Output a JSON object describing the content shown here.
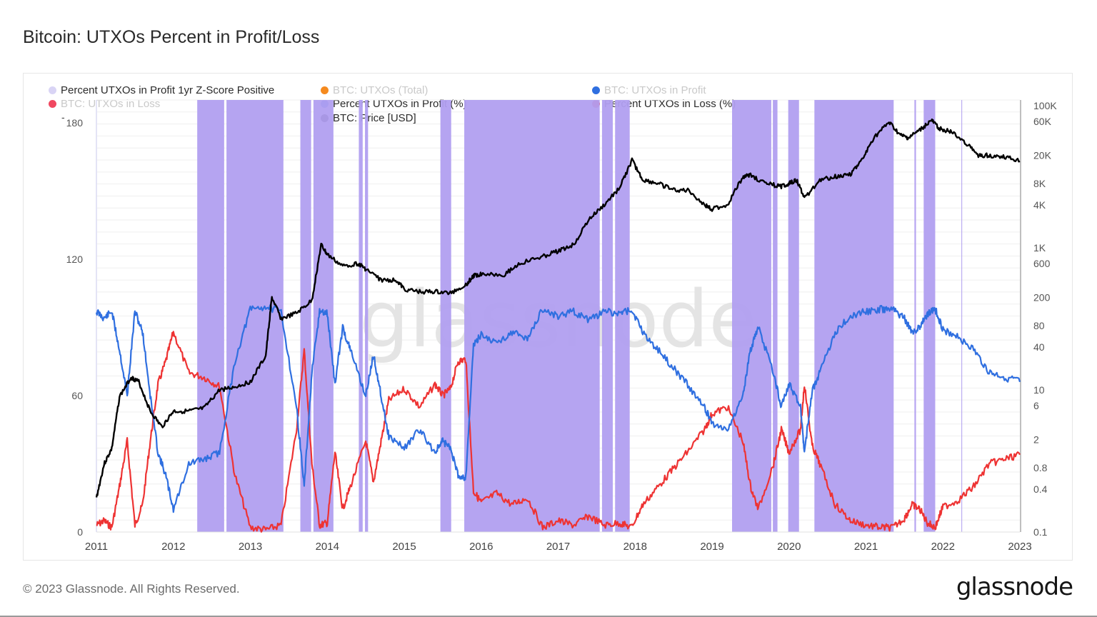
{
  "title": "Bitcoin: UTXOs Percent in Profit/Loss",
  "footer": {
    "copyright": "© 2023 Glassnode. All Rights Reserved.",
    "logo": "glassnode"
  },
  "watermark": "glassnode",
  "left_axis_dash": "-",
  "legend": [
    {
      "label": "Percent UTXOs in Profit 1yr Z-Score Positive",
      "color": "#d9d4f5",
      "state": "active"
    },
    {
      "label": "BTC: UTXOs (Total)",
      "color": "#f58a1f",
      "state": "muted"
    },
    {
      "label": "BTC: UTXOs in Profit",
      "color": "#2f6fe0",
      "state": "muted"
    },
    {
      "label": "BTC: UTXOs in Loss",
      "color": "#f04860",
      "state": "muted"
    },
    {
      "label": "Percent UTXOs in Profit (%)",
      "color": "#2f6fe0",
      "state": "active"
    },
    {
      "label": "Percent UTXOs in Loss (%)",
      "color": "#ee3333",
      "state": "active"
    },
    {
      "label": "BTC: Price [USD]",
      "color": "#000000",
      "state": "active"
    }
  ],
  "chart_data": {
    "type": "line",
    "title": "Bitcoin: UTXOs Percent in Profit/Loss",
    "x_ticks": [
      "2011",
      "2012",
      "2013",
      "2014",
      "2015",
      "2016",
      "2017",
      "2018",
      "2019",
      "2020",
      "2021",
      "2022",
      "2023"
    ],
    "xlim": [
      2011.0,
      2023.0
    ],
    "left_axis": {
      "ticks": [
        "0",
        "60",
        "120",
        "180"
      ],
      "ylim": [
        0,
        190
      ]
    },
    "right_axis": {
      "scale": "log",
      "ticks": [
        "100K",
        "60K",
        "20K",
        "8K",
        "4K",
        "1K",
        "600",
        "200",
        "80",
        "40",
        "10",
        "6",
        "2",
        "0.8",
        "0.4",
        "0.1"
      ],
      "ylim": [
        0.1,
        120000
      ]
    },
    "grid": true,
    "legend_position": "top",
    "colors": {
      "profit": "#2f6fe0",
      "loss": "#ee3333",
      "price": "#000000",
      "zscore_band": "#b19ff0"
    },
    "series": [
      {
        "name": "Percent UTXOs in Profit (%)",
        "axis": "left",
        "x": [
          2011.0,
          2011.1,
          2011.2,
          2011.3,
          2011.4,
          2011.5,
          2011.6,
          2011.7,
          2011.8,
          2011.9,
          2012.0,
          2012.2,
          2012.4,
          2012.6,
          2012.8,
          2013.0,
          2013.2,
          2013.4,
          2013.6,
          2013.7,
          2013.8,
          2013.9,
          2014.0,
          2014.1,
          2014.2,
          2014.3,
          2014.5,
          2014.6,
          2014.7,
          2014.8,
          2015.0,
          2015.2,
          2015.4,
          2015.5,
          2015.6,
          2015.7,
          2015.8,
          2015.9,
          2016.0,
          2016.2,
          2016.4,
          2016.6,
          2016.8,
          2017.0,
          2017.2,
          2017.4,
          2017.6,
          2017.8,
          2017.95,
          2018.1,
          2018.3,
          2018.5,
          2018.7,
          2018.9,
          2019.0,
          2019.2,
          2019.4,
          2019.5,
          2019.6,
          2019.8,
          2019.9,
          2020.0,
          2020.15,
          2020.2,
          2020.3,
          2020.4,
          2020.6,
          2020.8,
          2021.0,
          2021.2,
          2021.35,
          2021.5,
          2021.6,
          2021.7,
          2021.8,
          2021.9,
          2022.0,
          2022.2,
          2022.4,
          2022.6,
          2022.8,
          2023.0
        ],
        "y": [
          97,
          94,
          97,
          80,
          60,
          97,
          88,
          60,
          35,
          25,
          10,
          30,
          32,
          35,
          75,
          98,
          99,
          97,
          55,
          20,
          70,
          97,
          96,
          65,
          90,
          80,
          60,
          78,
          60,
          42,
          37,
          45,
          35,
          40,
          37,
          25,
          24,
          82,
          87,
          83,
          88,
          85,
          98,
          95,
          97,
          93,
          97,
          96,
          98,
          88,
          80,
          72,
          64,
          55,
          48,
          45,
          60,
          80,
          90,
          70,
          55,
          65,
          55,
          35,
          62,
          70,
          88,
          95,
          97,
          98,
          98,
          94,
          88,
          90,
          96,
          98,
          89,
          86,
          80,
          70,
          68,
          66
        ],
        "label": "Percent UTXOs in Profit (%)"
      },
      {
        "name": "Percent UTXOs in Loss (%)",
        "axis": "left",
        "x": [
          2011.0,
          2011.1,
          2011.2,
          2011.3,
          2011.4,
          2011.5,
          2011.6,
          2011.7,
          2011.8,
          2011.9,
          2012.0,
          2012.2,
          2012.4,
          2012.6,
          2012.8,
          2013.0,
          2013.2,
          2013.4,
          2013.6,
          2013.7,
          2013.8,
          2013.9,
          2014.0,
          2014.1,
          2014.2,
          2014.3,
          2014.5,
          2014.6,
          2014.7,
          2014.8,
          2015.0,
          2015.2,
          2015.4,
          2015.5,
          2015.6,
          2015.7,
          2015.8,
          2015.9,
          2016.0,
          2016.2,
          2016.4,
          2016.6,
          2016.8,
          2017.0,
          2017.2,
          2017.4,
          2017.6,
          2017.8,
          2017.95,
          2018.1,
          2018.3,
          2018.5,
          2018.7,
          2018.9,
          2019.0,
          2019.2,
          2019.4,
          2019.5,
          2019.6,
          2019.8,
          2019.9,
          2020.0,
          2020.15,
          2020.2,
          2020.3,
          2020.4,
          2020.6,
          2020.8,
          2021.0,
          2021.2,
          2021.35,
          2021.5,
          2021.6,
          2021.7,
          2021.8,
          2021.9,
          2022.0,
          2022.2,
          2022.4,
          2022.6,
          2022.8,
          2023.0
        ],
        "y": [
          3,
          5,
          2,
          20,
          40,
          3,
          12,
          40,
          65,
          75,
          88,
          70,
          68,
          64,
          25,
          2,
          1,
          3,
          45,
          80,
          30,
          3,
          4,
          35,
          10,
          20,
          40,
          22,
          40,
          58,
          63,
          55,
          65,
          60,
          63,
          75,
          76,
          18,
          13,
          17,
          12,
          15,
          2,
          5,
          3,
          7,
          3,
          4,
          2,
          12,
          20,
          28,
          36,
          45,
          52,
          55,
          40,
          20,
          10,
          30,
          45,
          35,
          45,
          65,
          38,
          30,
          12,
          5,
          3,
          2,
          2,
          6,
          12,
          10,
          4,
          2,
          11,
          14,
          20,
          30,
          32,
          34
        ],
        "label": "Percent UTXOs in Loss (%)"
      },
      {
        "name": "BTC: Price [USD]",
        "axis": "right",
        "x": [
          2011.0,
          2011.1,
          2011.2,
          2011.3,
          2011.45,
          2011.55,
          2011.7,
          2011.85,
          2012.0,
          2012.2,
          2012.4,
          2012.6,
          2012.8,
          2013.0,
          2013.2,
          2013.28,
          2013.4,
          2013.6,
          2013.8,
          2013.92,
          2014.0,
          2014.2,
          2014.4,
          2014.5,
          2014.7,
          2014.9,
          2015.0,
          2015.2,
          2015.4,
          2015.6,
          2015.8,
          2015.9,
          2016.0,
          2016.3,
          2016.5,
          2016.8,
          2017.0,
          2017.2,
          2017.4,
          2017.6,
          2017.8,
          2017.96,
          2018.1,
          2018.3,
          2018.5,
          2018.7,
          2018.9,
          2019.0,
          2019.2,
          2019.4,
          2019.5,
          2019.7,
          2019.9,
          2020.0,
          2020.1,
          2020.2,
          2020.4,
          2020.6,
          2020.8,
          2020.95,
          2021.1,
          2021.3,
          2021.45,
          2021.55,
          2021.7,
          2021.85,
          2021.95,
          2022.1,
          2022.3,
          2022.45,
          2022.6,
          2022.8,
          2023.0
        ],
        "y": [
          0.3,
          0.9,
          1.5,
          8,
          15,
          13,
          5,
          3,
          5,
          5,
          5.5,
          10,
          11,
          13,
          30,
          200,
          100,
          120,
          180,
          1100,
          800,
          550,
          600,
          500,
          350,
          350,
          260,
          240,
          240,
          230,
          300,
          400,
          430,
          420,
          600,
          750,
          900,
          1100,
          2500,
          4000,
          7000,
          17000,
          9000,
          8000,
          6500,
          6400,
          4000,
          3500,
          4000,
          10000,
          10500,
          8000,
          7300,
          8000,
          9000,
          5000,
          9000,
          10000,
          11000,
          17000,
          35000,
          58000,
          38000,
          35000,
          45000,
          62000,
          48000,
          43000,
          30000,
          20000,
          20000,
          19000,
          16500
        ]
      }
    ],
    "zscore_positive_bands": [
      [
        2012.31,
        2012.66
      ],
      [
        2012.69,
        2013.43
      ],
      [
        2013.65,
        2013.79
      ],
      [
        2013.82,
        2014.08
      ],
      [
        2014.41,
        2014.46
      ],
      [
        2014.49,
        2014.53
      ],
      [
        2015.47,
        2015.61
      ],
      [
        2015.78,
        2017.54
      ],
      [
        2017.57,
        2017.71
      ],
      [
        2017.74,
        2017.93
      ],
      [
        2019.26,
        2019.77
      ],
      [
        2019.79,
        2019.85
      ],
      [
        2019.99,
        2020.13
      ],
      [
        2020.33,
        2021.36
      ],
      [
        2021.63,
        2021.65
      ],
      [
        2021.75,
        2021.9
      ],
      [
        2022.24,
        2022.25
      ]
    ]
  }
}
